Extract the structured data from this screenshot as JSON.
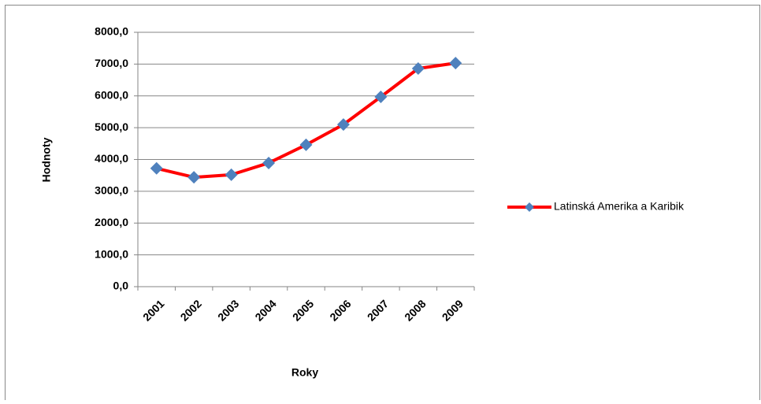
{
  "chart_data": {
    "type": "line",
    "x_label": "Roky",
    "y_label": "Hodnoty",
    "categories": [
      "2001",
      "2002",
      "2003",
      "2004",
      "2005",
      "2006",
      "2007",
      "2008",
      "2009"
    ],
    "series": [
      {
        "name": "Latinská Amerika a Karibik",
        "color": "#ff0000",
        "marker_color": "#4f81bd",
        "values": [
          3720,
          3440,
          3520,
          3890,
          4460,
          5100,
          5970,
          6860,
          7030
        ]
      }
    ],
    "ylim": [
      0,
      8000
    ],
    "yticks": [
      {
        "value": 0,
        "label": "0,0"
      },
      {
        "value": 1000,
        "label": "1000,0"
      },
      {
        "value": 2000,
        "label": "2000,0"
      },
      {
        "value": 3000,
        "label": "3000,0"
      },
      {
        "value": 4000,
        "label": "4000,0"
      },
      {
        "value": 5000,
        "label": "5000,0"
      },
      {
        "value": 6000,
        "label": "6000,0"
      },
      {
        "value": 7000,
        "label": "7000,0"
      },
      {
        "value": 8000,
        "label": "8000,0"
      }
    ],
    "grid": true,
    "legend": "right"
  }
}
